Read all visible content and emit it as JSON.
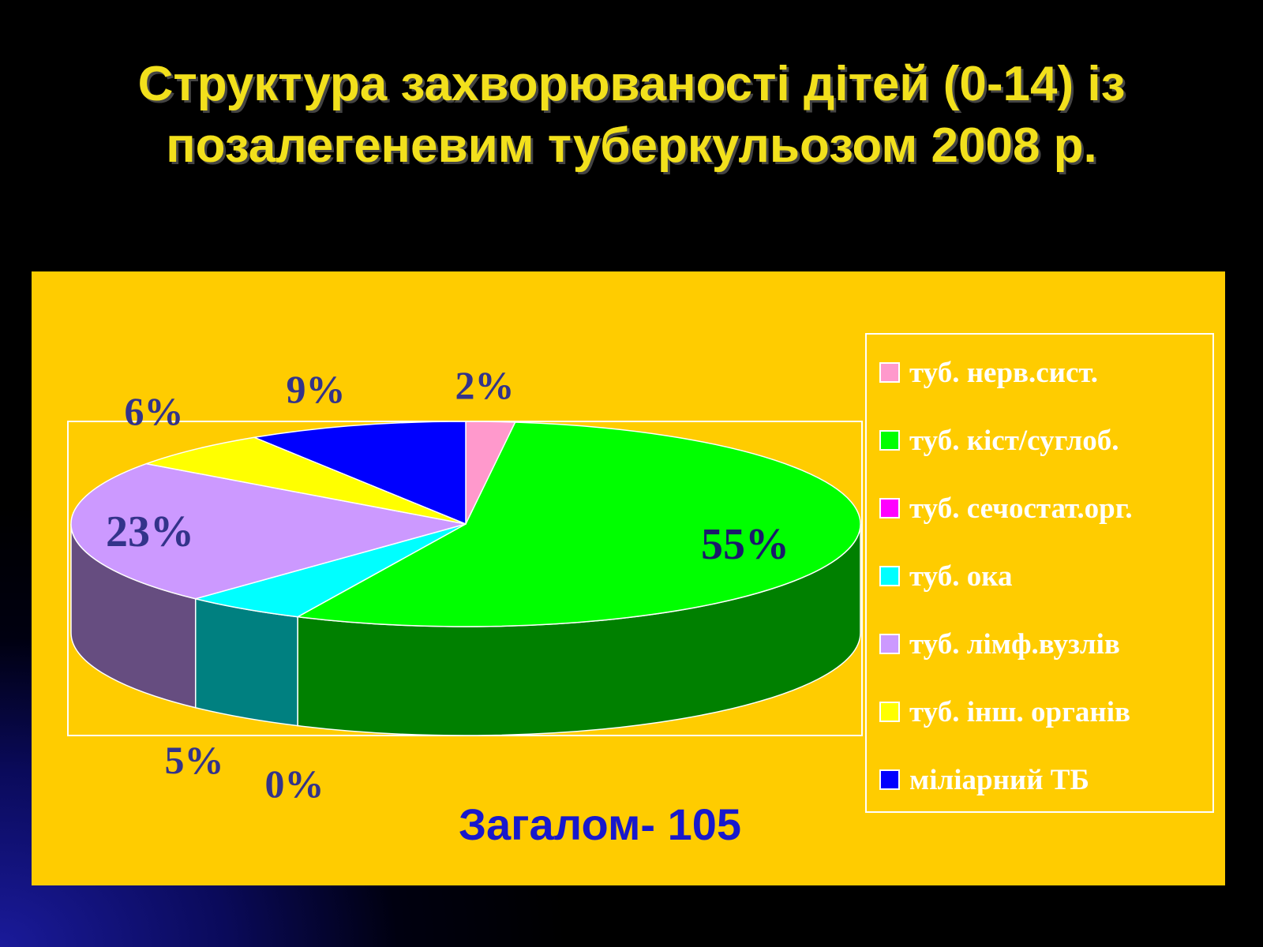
{
  "title_lines": [
    "Структура захворюваності дітей (0-14) із",
    "позалегеневим туберкульозом 2008 р."
  ],
  "total_label": "Загалом- 105",
  "chart_data": {
    "type": "pie",
    "title": "",
    "series": [
      {
        "label": "туб. нерв.сист.",
        "value": 2,
        "data_label": "2%",
        "color": "#ff99cc",
        "side_color": "#b36b8f"
      },
      {
        "label": "туб. кіст/суглоб.",
        "value": 55,
        "data_label": "55%",
        "color": "#00ff00",
        "side_color": "#008000"
      },
      {
        "label": "туб. сечостат.орг.",
        "value": 0,
        "data_label": "0%",
        "color": "#ff00ff",
        "side_color": "#990099"
      },
      {
        "label": "туб. ока",
        "value": 5,
        "data_label": "5%",
        "color": "#00ffff",
        "side_color": "#008080"
      },
      {
        "label": "туб. лімф.вузлів",
        "value": 23,
        "data_label": "23%",
        "color": "#cc99ff",
        "side_color": "#664d80"
      },
      {
        "label": "туб. інш. органів",
        "value": 6,
        "data_label": "6%",
        "color": "#ffff00",
        "side_color": "#999900"
      },
      {
        "label": "міліарний ТБ",
        "value": 9,
        "data_label": "9%",
        "color": "#0000ff",
        "side_color": "#000099"
      }
    ],
    "legend_position": "right",
    "three_d": true,
    "colors": {
      "panel_background": "#ffcc00",
      "title_text": "#f2e01c",
      "data_label_text": "#33338a",
      "total_text": "#1818cc",
      "legend_text": "#ffffff"
    }
  }
}
